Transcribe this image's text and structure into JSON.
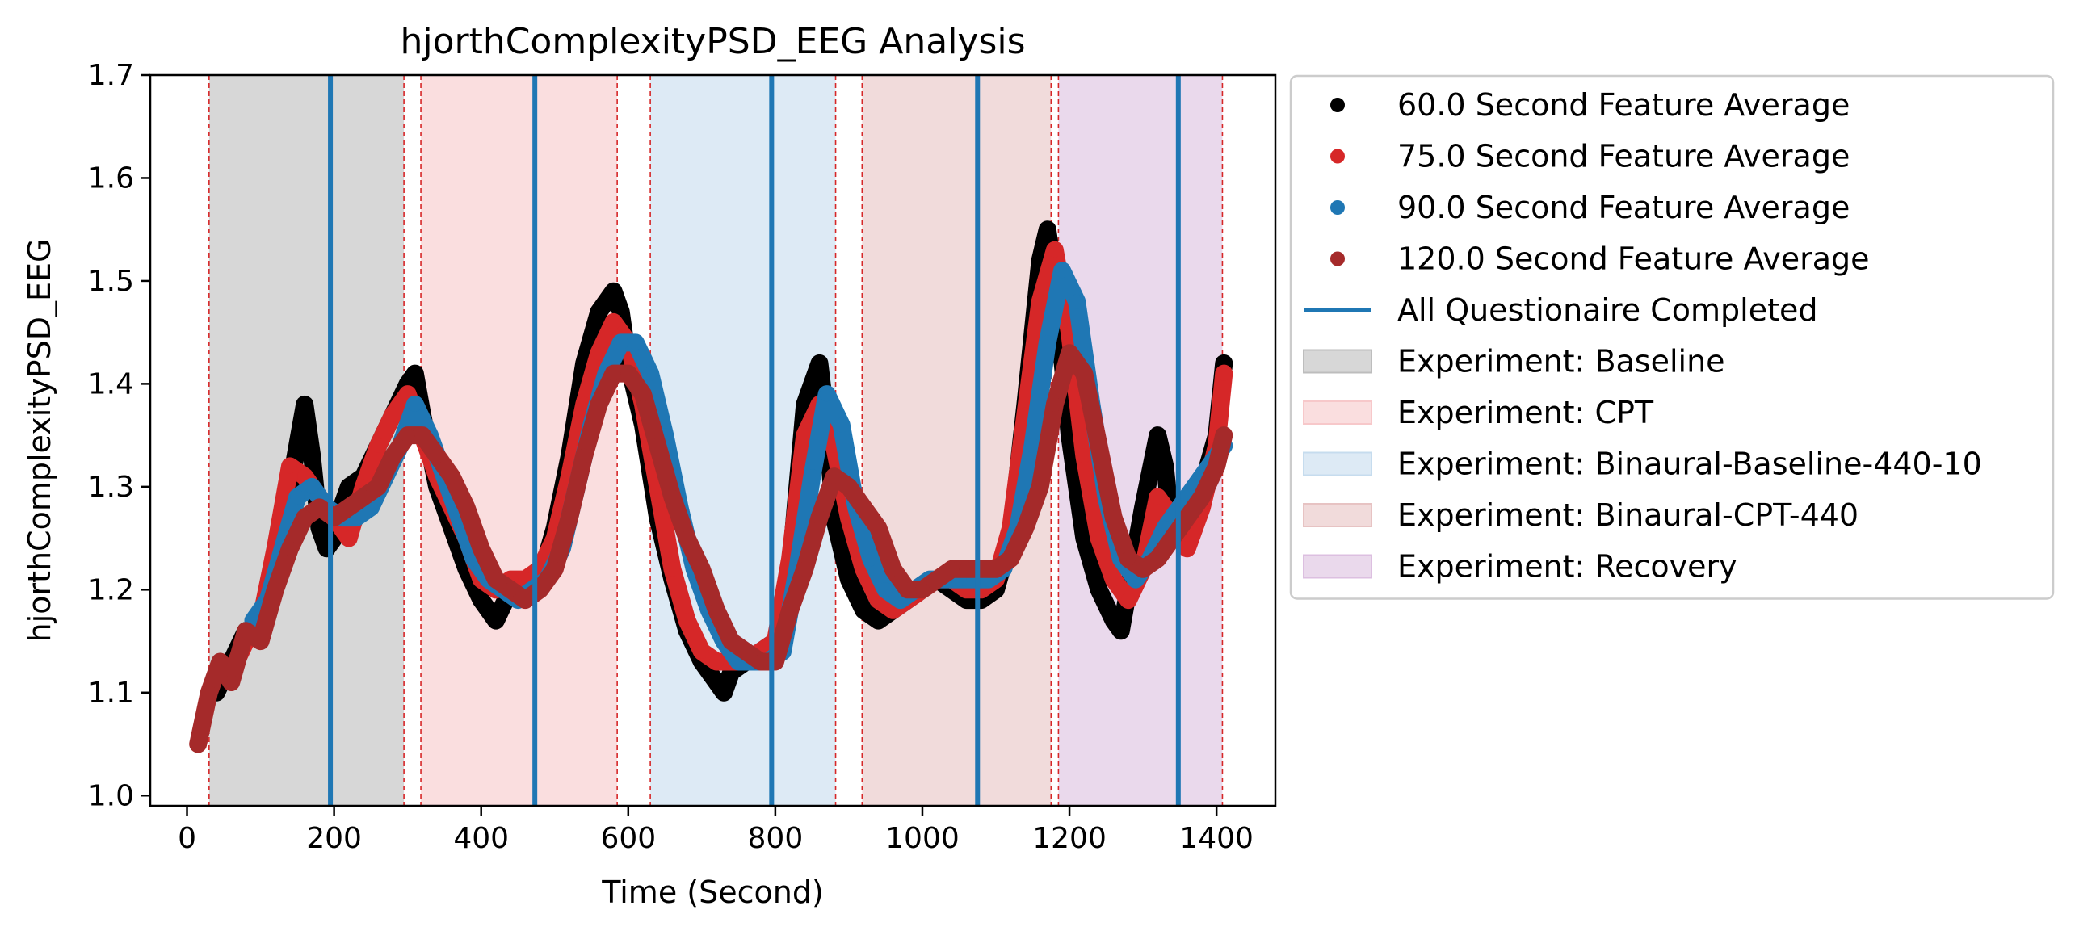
{
  "chart_data": {
    "type": "scatter",
    "title": "hjorthComplexityPSD_EEG Analysis",
    "xlabel": "Time (Second)",
    "ylabel": "hjorthComplexityPSD_EEG",
    "xlim": [
      -50,
      1480
    ],
    "ylim": [
      0.99,
      1.7
    ],
    "xticks": [
      0,
      200,
      400,
      600,
      800,
      1000,
      1200,
      1400
    ],
    "yticks": [
      1.0,
      1.1,
      1.2,
      1.3,
      1.4,
      1.5,
      1.6,
      1.7
    ],
    "grid": false,
    "legend_position": "outside-right",
    "experiment_regions": [
      {
        "name": "Experiment: Baseline",
        "start": 30,
        "end": 295,
        "color": "#bdbdbd"
      },
      {
        "name": "Experiment: CPT",
        "start": 318,
        "end": 585,
        "color": "#f7c8ca"
      },
      {
        "name": "Experiment: Binaural-Baseline-440-10",
        "start": 630,
        "end": 882,
        "color": "#c6dcee"
      },
      {
        "name": "Experiment: Binaural-CPT-440",
        "start": 918,
        "end": 1175,
        "color": "#e7c3c3"
      },
      {
        "name": "Experiment: Recovery",
        "start": 1185,
        "end": 1408,
        "color": "#dcbfe0"
      }
    ],
    "boundary_lines": [
      30,
      295,
      318,
      585,
      630,
      882,
      918,
      1175,
      1185,
      1408
    ],
    "questionnaire_completed": {
      "name": "All Questionaire Completed",
      "x": [
        195,
        473,
        795,
        1075,
        1348
      ],
      "color": "#1f77b4"
    },
    "series": [
      {
        "name": "60.0 Second Feature Average",
        "color": "#000000",
        "x": [
          40,
          60,
          80,
          100,
          120,
          140,
          150,
          160,
          170,
          180,
          190,
          200,
          210,
          220,
          240,
          260,
          280,
          300,
          310,
          320,
          340,
          360,
          380,
          400,
          420,
          440,
          460,
          480,
          500,
          520,
          540,
          560,
          580,
          590,
          600,
          620,
          640,
          660,
          680,
          700,
          720,
          730,
          740,
          760,
          780,
          800,
          820,
          840,
          860,
          870,
          880,
          900,
          920,
          940,
          960,
          980,
          1000,
          1020,
          1040,
          1060,
          1080,
          1100,
          1120,
          1140,
          1160,
          1170,
          1180,
          1200,
          1220,
          1240,
          1260,
          1270,
          1280,
          1300,
          1320,
          1330,
          1340,
          1360,
          1380,
          1400,
          1410
        ],
        "values": [
          1.1,
          1.13,
          1.16,
          1.16,
          1.22,
          1.3,
          1.34,
          1.38,
          1.33,
          1.26,
          1.24,
          1.25,
          1.28,
          1.3,
          1.31,
          1.34,
          1.37,
          1.4,
          1.41,
          1.37,
          1.3,
          1.26,
          1.22,
          1.19,
          1.17,
          1.2,
          1.2,
          1.21,
          1.26,
          1.33,
          1.42,
          1.47,
          1.49,
          1.47,
          1.42,
          1.36,
          1.27,
          1.21,
          1.16,
          1.13,
          1.11,
          1.1,
          1.12,
          1.13,
          1.14,
          1.15,
          1.22,
          1.38,
          1.42,
          1.36,
          1.27,
          1.21,
          1.18,
          1.17,
          1.18,
          1.19,
          1.2,
          1.21,
          1.2,
          1.19,
          1.19,
          1.2,
          1.25,
          1.38,
          1.52,
          1.55,
          1.5,
          1.35,
          1.25,
          1.2,
          1.17,
          1.16,
          1.2,
          1.28,
          1.35,
          1.32,
          1.25,
          1.28,
          1.3,
          1.35,
          1.42
        ]
      },
      {
        "name": "75.0 Second Feature Average",
        "color": "#d62728",
        "x": [
          40,
          60,
          80,
          100,
          120,
          140,
          160,
          180,
          200,
          220,
          240,
          260,
          280,
          300,
          320,
          340,
          360,
          380,
          400,
          420,
          440,
          460,
          480,
          500,
          520,
          540,
          560,
          580,
          600,
          620,
          640,
          660,
          680,
          700,
          720,
          740,
          760,
          780,
          800,
          820,
          840,
          860,
          880,
          900,
          920,
          940,
          960,
          980,
          1000,
          1020,
          1040,
          1060,
          1080,
          1100,
          1120,
          1140,
          1160,
          1180,
          1200,
          1220,
          1240,
          1260,
          1280,
          1300,
          1320,
          1340,
          1360,
          1380,
          1400,
          1410
        ],
        "values": [
          1.12,
          1.12,
          1.15,
          1.17,
          1.24,
          1.32,
          1.31,
          1.29,
          1.27,
          1.25,
          1.3,
          1.34,
          1.37,
          1.39,
          1.35,
          1.31,
          1.28,
          1.25,
          1.21,
          1.2,
          1.21,
          1.21,
          1.22,
          1.25,
          1.31,
          1.38,
          1.43,
          1.46,
          1.44,
          1.38,
          1.3,
          1.22,
          1.17,
          1.14,
          1.13,
          1.13,
          1.13,
          1.14,
          1.15,
          1.23,
          1.35,
          1.38,
          1.34,
          1.27,
          1.22,
          1.19,
          1.18,
          1.19,
          1.2,
          1.21,
          1.21,
          1.2,
          1.2,
          1.21,
          1.26,
          1.37,
          1.48,
          1.53,
          1.45,
          1.33,
          1.25,
          1.21,
          1.19,
          1.22,
          1.29,
          1.27,
          1.24,
          1.28,
          1.34,
          1.41
        ]
      },
      {
        "name": "90.0 Second Feature Average",
        "color": "#1f77b4",
        "x": [
          90,
          110,
          130,
          150,
          170,
          190,
          210,
          230,
          250,
          270,
          290,
          310,
          330,
          350,
          370,
          390,
          410,
          430,
          450,
          470,
          490,
          510,
          530,
          550,
          570,
          590,
          610,
          630,
          650,
          670,
          690,
          710,
          730,
          750,
          770,
          790,
          810,
          830,
          850,
          870,
          890,
          910,
          930,
          950,
          970,
          990,
          1010,
          1030,
          1050,
          1070,
          1090,
          1110,
          1130,
          1150,
          1170,
          1190,
          1210,
          1230,
          1250,
          1270,
          1290,
          1310,
          1330,
          1350,
          1370,
          1390,
          1410
        ],
        "values": [
          1.17,
          1.19,
          1.24,
          1.29,
          1.3,
          1.28,
          1.27,
          1.27,
          1.28,
          1.31,
          1.34,
          1.38,
          1.35,
          1.31,
          1.27,
          1.23,
          1.21,
          1.2,
          1.19,
          1.2,
          1.21,
          1.24,
          1.3,
          1.36,
          1.41,
          1.44,
          1.44,
          1.41,
          1.35,
          1.28,
          1.22,
          1.18,
          1.15,
          1.13,
          1.13,
          1.13,
          1.14,
          1.22,
          1.31,
          1.39,
          1.36,
          1.28,
          1.23,
          1.2,
          1.19,
          1.2,
          1.21,
          1.21,
          1.21,
          1.21,
          1.21,
          1.22,
          1.26,
          1.34,
          1.44,
          1.51,
          1.48,
          1.38,
          1.29,
          1.23,
          1.21,
          1.23,
          1.26,
          1.28,
          1.3,
          1.32,
          1.34
        ]
      },
      {
        "name": "120.0 Second Feature Average",
        "color": "#a52a2a",
        "x": [
          15,
          30,
          45,
          60,
          80,
          100,
          120,
          140,
          160,
          180,
          200,
          220,
          240,
          260,
          280,
          300,
          320,
          340,
          360,
          380,
          400,
          420,
          440,
          460,
          480,
          500,
          520,
          540,
          560,
          580,
          600,
          620,
          640,
          660,
          680,
          700,
          720,
          740,
          760,
          780,
          800,
          820,
          840,
          860,
          880,
          900,
          920,
          940,
          960,
          980,
          1000,
          1020,
          1040,
          1060,
          1080,
          1100,
          1120,
          1140,
          1160,
          1180,
          1200,
          1220,
          1240,
          1260,
          1280,
          1300,
          1320,
          1340,
          1360,
          1380,
          1400,
          1410
        ],
        "values": [
          1.05,
          1.1,
          1.13,
          1.11,
          1.16,
          1.15,
          1.2,
          1.24,
          1.27,
          1.28,
          1.27,
          1.28,
          1.29,
          1.3,
          1.33,
          1.35,
          1.35,
          1.33,
          1.31,
          1.28,
          1.24,
          1.21,
          1.2,
          1.19,
          1.2,
          1.22,
          1.27,
          1.33,
          1.38,
          1.41,
          1.41,
          1.39,
          1.34,
          1.29,
          1.25,
          1.22,
          1.18,
          1.15,
          1.14,
          1.13,
          1.13,
          1.18,
          1.22,
          1.27,
          1.31,
          1.3,
          1.28,
          1.26,
          1.22,
          1.2,
          1.2,
          1.21,
          1.22,
          1.22,
          1.22,
          1.22,
          1.23,
          1.26,
          1.3,
          1.38,
          1.43,
          1.41,
          1.34,
          1.27,
          1.23,
          1.22,
          1.23,
          1.25,
          1.27,
          1.29,
          1.32,
          1.35
        ]
      }
    ],
    "legend_entries": [
      {
        "label": "60.0 Second Feature Average",
        "kind": "marker",
        "color": "#000000"
      },
      {
        "label": "75.0 Second Feature Average",
        "kind": "marker",
        "color": "#d62728"
      },
      {
        "label": "90.0 Second Feature Average",
        "kind": "marker",
        "color": "#1f77b4"
      },
      {
        "label": "120.0 Second Feature Average",
        "kind": "marker",
        "color": "#a52a2a"
      },
      {
        "label": "All Questionaire Completed",
        "kind": "line",
        "color": "#1f77b4"
      },
      {
        "label": "Experiment: Baseline",
        "kind": "patch",
        "color": "#bdbdbd"
      },
      {
        "label": "Experiment: CPT",
        "kind": "patch",
        "color": "#f7c8ca"
      },
      {
        "label": "Experiment: Binaural-Baseline-440-10",
        "kind": "patch",
        "color": "#c6dcee"
      },
      {
        "label": "Experiment: Binaural-CPT-440",
        "kind": "patch",
        "color": "#e7c3c3"
      },
      {
        "label": "Experiment: Recovery",
        "kind": "patch",
        "color": "#dcbfe0"
      }
    ]
  }
}
